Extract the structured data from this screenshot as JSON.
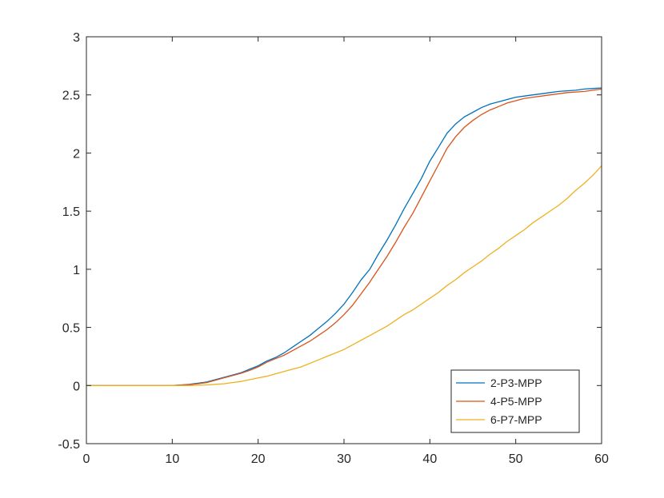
{
  "chart_data": {
    "type": "line",
    "title": "",
    "xlabel": "",
    "ylabel": "",
    "xlim": [
      0,
      60
    ],
    "ylim": [
      -0.5,
      3
    ],
    "x_ticks": [
      "0",
      "10",
      "20",
      "30",
      "40",
      "50",
      "60"
    ],
    "y_ticks": [
      "-0.5",
      "0",
      "0.5",
      "1",
      "1.5",
      "2",
      "2.5",
      "3"
    ],
    "grid": false,
    "legend_position": "bottom-right",
    "series": [
      {
        "name": "2-P3-MPP",
        "color": "#0072BD",
        "x": [
          0,
          5,
          10,
          11,
          12,
          13,
          14,
          15,
          16,
          17,
          18,
          19,
          20,
          21,
          22,
          23,
          24,
          25,
          26,
          27,
          28,
          29,
          30,
          31,
          32,
          33,
          34,
          35,
          36,
          37,
          38,
          39,
          40,
          41,
          42,
          43,
          44,
          45,
          46,
          47,
          48,
          49,
          50,
          51,
          52,
          53,
          54,
          55,
          56,
          57,
          58,
          59,
          60
        ],
        "values": [
          0,
          0,
          0,
          0.005,
          0.01,
          0.02,
          0.03,
          0.05,
          0.07,
          0.09,
          0.11,
          0.14,
          0.17,
          0.21,
          0.24,
          0.28,
          0.33,
          0.38,
          0.43,
          0.49,
          0.55,
          0.62,
          0.7,
          0.8,
          0.91,
          1.0,
          1.13,
          1.25,
          1.38,
          1.52,
          1.65,
          1.78,
          1.93,
          2.05,
          2.17,
          2.25,
          2.31,
          2.35,
          2.39,
          2.42,
          2.44,
          2.46,
          2.48,
          2.49,
          2.5,
          2.51,
          2.52,
          2.53,
          2.535,
          2.54,
          2.55,
          2.555,
          2.56
        ]
      },
      {
        "name": "4-P5-MPP",
        "color": "#D95319",
        "x": [
          0,
          5,
          10,
          11,
          12,
          13,
          14,
          15,
          16,
          17,
          18,
          19,
          20,
          21,
          22,
          23,
          24,
          25,
          26,
          27,
          28,
          29,
          30,
          31,
          32,
          33,
          34,
          35,
          36,
          37,
          38,
          39,
          40,
          41,
          42,
          43,
          44,
          45,
          46,
          47,
          48,
          49,
          50,
          51,
          52,
          53,
          54,
          55,
          56,
          57,
          58,
          59,
          60
        ],
        "values": [
          0,
          0,
          0,
          0.004,
          0.008,
          0.015,
          0.025,
          0.045,
          0.065,
          0.085,
          0.105,
          0.13,
          0.16,
          0.2,
          0.23,
          0.26,
          0.3,
          0.34,
          0.38,
          0.43,
          0.48,
          0.54,
          0.61,
          0.69,
          0.79,
          0.89,
          1.0,
          1.11,
          1.23,
          1.36,
          1.48,
          1.62,
          1.76,
          1.9,
          2.04,
          2.14,
          2.22,
          2.28,
          2.33,
          2.37,
          2.4,
          2.43,
          2.45,
          2.47,
          2.48,
          2.49,
          2.5,
          2.51,
          2.52,
          2.525,
          2.53,
          2.54,
          2.55
        ]
      },
      {
        "name": "6-P7-MPP",
        "color": "#EDB120",
        "x": [
          0,
          5,
          10,
          11,
          12,
          13,
          14,
          15,
          16,
          17,
          18,
          19,
          20,
          21,
          22,
          23,
          24,
          25,
          26,
          27,
          28,
          29,
          30,
          31,
          32,
          33,
          34,
          35,
          36,
          37,
          38,
          39,
          40,
          41,
          42,
          43,
          44,
          45,
          46,
          47,
          48,
          49,
          50,
          51,
          52,
          53,
          54,
          55,
          56,
          57,
          58,
          59,
          60
        ],
        "values": [
          0,
          0,
          0,
          0,
          0,
          0.002,
          0.005,
          0.01,
          0.015,
          0.025,
          0.035,
          0.05,
          0.065,
          0.08,
          0.1,
          0.12,
          0.14,
          0.16,
          0.19,
          0.22,
          0.25,
          0.28,
          0.31,
          0.35,
          0.39,
          0.43,
          0.47,
          0.51,
          0.56,
          0.61,
          0.65,
          0.7,
          0.75,
          0.8,
          0.86,
          0.91,
          0.97,
          1.02,
          1.07,
          1.13,
          1.18,
          1.24,
          1.29,
          1.34,
          1.4,
          1.45,
          1.5,
          1.55,
          1.61,
          1.68,
          1.74,
          1.81,
          1.89
        ]
      }
    ]
  }
}
